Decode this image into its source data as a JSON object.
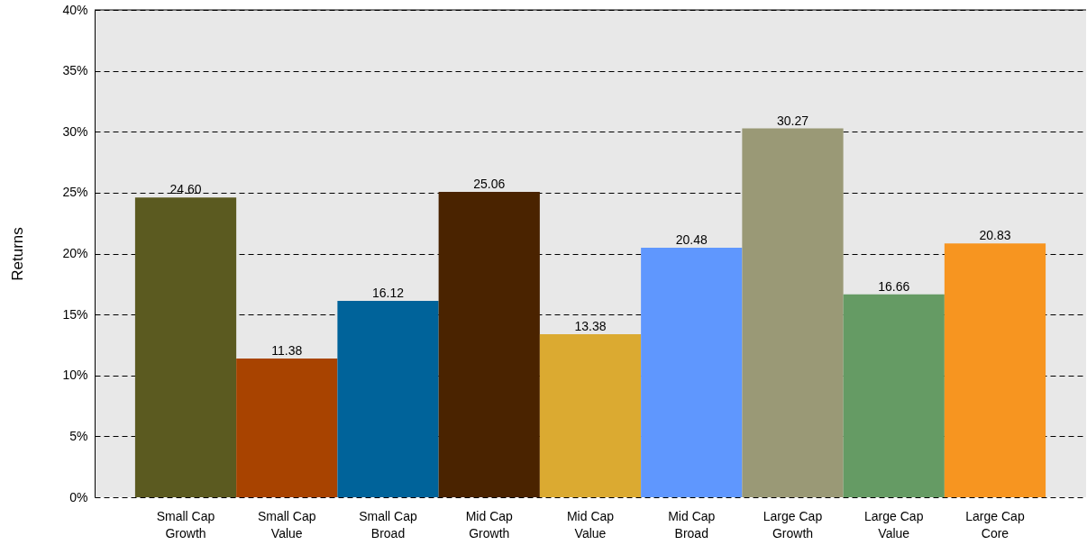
{
  "chart_data": {
    "type": "bar",
    "ylabel": "Returns",
    "categories": [
      "Small Cap Growth",
      "Small Cap Value",
      "Small Cap Broad",
      "Mid Cap Growth",
      "Mid Cap Value",
      "Mid Cap Broad",
      "Large Cap Growth",
      "Large Cap Value",
      "Large Cap Core"
    ],
    "values": [
      24.6,
      11.38,
      16.12,
      25.06,
      13.38,
      20.48,
      30.27,
      16.66,
      20.83
    ],
    "value_labels": [
      "24.60",
      "11.38",
      "16.12",
      "25.06",
      "13.38",
      "20.48",
      "30.27",
      "16.66",
      "20.83"
    ],
    "colors": [
      "#5b5a20",
      "#a84300",
      "#00639a",
      "#4a2300",
      "#dbaa31",
      "#5f97fe",
      "#9a9976",
      "#659b64",
      "#f79520"
    ],
    "ylim": [
      0,
      40
    ],
    "yticks": [
      {
        "value": 0,
        "label": "0%"
      },
      {
        "value": 5,
        "label": "5%"
      },
      {
        "value": 10,
        "label": "10%"
      },
      {
        "value": 15,
        "label": "15%"
      },
      {
        "value": 20,
        "label": "20%"
      },
      {
        "value": 25,
        "label": "25%"
      },
      {
        "value": 30,
        "label": "30%"
      },
      {
        "value": 35,
        "label": "35%"
      },
      {
        "value": 40,
        "label": "40%"
      }
    ],
    "grid": "y",
    "line_style": "dashed"
  }
}
